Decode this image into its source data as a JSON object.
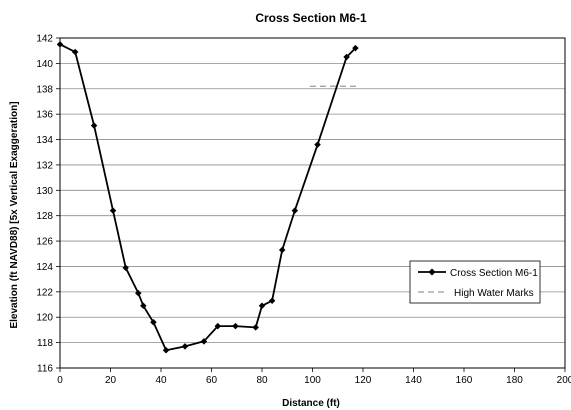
{
  "chart_data": {
    "type": "line",
    "title": "Cross Section M6-1",
    "xlabel": "Distance (ft)",
    "ylabel": "Elevation (ft NAVD88) [5x Vertical Exaggeration]",
    "xlim": [
      0,
      200
    ],
    "ylim": [
      116,
      142
    ],
    "xticks": [
      "0",
      "20",
      "40",
      "60",
      "80",
      "100",
      "120",
      "140",
      "160",
      "180",
      "200"
    ],
    "yticks": [
      "116",
      "118",
      "120",
      "122",
      "124",
      "126",
      "128",
      "130",
      "132",
      "134",
      "136",
      "138",
      "140",
      "142"
    ],
    "grid": "horizontal",
    "legend_position": "right",
    "series": [
      {
        "name": "Cross Section M6-1",
        "style": "solid-with-diamond-markers",
        "color": "#000000",
        "x": [
          0,
          6,
          13.5,
          21,
          26,
          31,
          33,
          37,
          42,
          49.5,
          57,
          62.5,
          69.5,
          77.5,
          80,
          84,
          88,
          93,
          102,
          113.5,
          117
        ],
        "y": [
          141.5,
          140.9,
          135.1,
          128.4,
          123.9,
          121.9,
          120.9,
          119.6,
          117.4,
          117.7,
          118.1,
          119.3,
          119.3,
          119.2,
          120.9,
          121.3,
          125.3,
          128.4,
          133.6,
          140.5,
          141.2
        ]
      },
      {
        "name": "High Water Marks",
        "style": "dashed",
        "color": "#999999",
        "x": [
          99,
          118
        ],
        "y": [
          138.2,
          138.2
        ]
      }
    ]
  }
}
